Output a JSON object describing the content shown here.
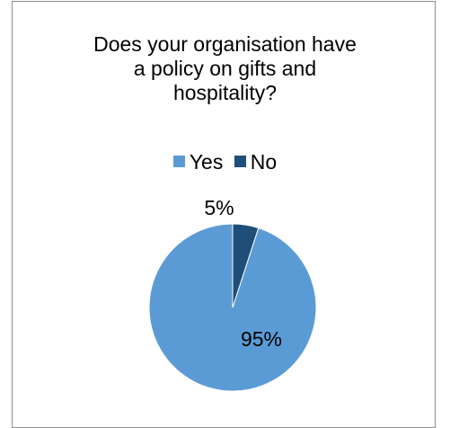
{
  "chart_data": {
    "type": "pie",
    "title_lines": [
      "Does your organisation have",
      "a policy on gifts and",
      "hospitality?"
    ],
    "categories": [
      "Yes",
      "No"
    ],
    "values": [
      95,
      5
    ],
    "labels": [
      "95%",
      "5%"
    ],
    "colors": [
      "#5b9bd5",
      "#1f4e79"
    ],
    "legend": "top"
  }
}
